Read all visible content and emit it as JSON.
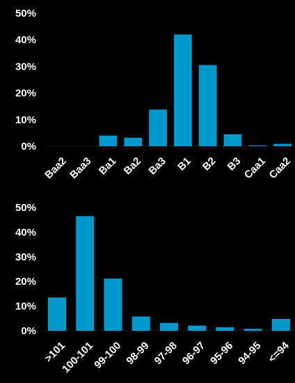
{
  "colors": {
    "background": "#000000",
    "bar": "#0099cc",
    "text": "#ffffff"
  },
  "chart_data": [
    {
      "type": "bar",
      "categories": [
        "Baa2",
        "Baa3",
        "Ba1",
        "Ba2",
        "Ba3",
        "B1",
        "B2",
        "B3",
        "Caa1",
        "Caa2"
      ],
      "values": [
        0,
        0,
        4,
        3.2,
        13.8,
        42,
        30.5,
        4.5,
        0.3,
        0.9
      ],
      "ylim": [
        0,
        50
      ],
      "yticks": [
        "0%",
        "10%",
        "20%",
        "30%",
        "40%",
        "50%"
      ],
      "grid": false,
      "legend": "none"
    },
    {
      "type": "bar",
      "categories": [
        ">101",
        "100-101",
        "99-100",
        "98-99",
        "97-98",
        "96-97",
        "95-96",
        "94-95",
        "<=94"
      ],
      "values": [
        13.5,
        46.5,
        21.2,
        5.8,
        3.2,
        2.1,
        1.4,
        0.8,
        4.8
      ],
      "ylim": [
        0,
        50
      ],
      "yticks": [
        "0%",
        "10%",
        "20%",
        "30%",
        "40%",
        "50%"
      ],
      "grid": false,
      "legend": "none"
    }
  ]
}
